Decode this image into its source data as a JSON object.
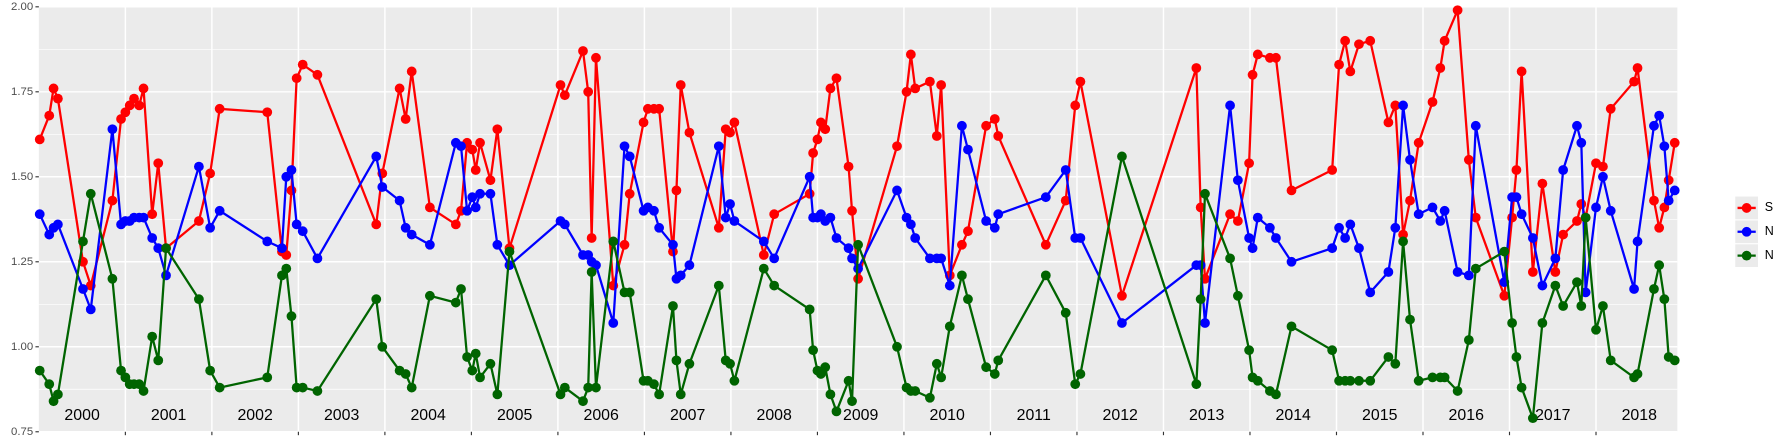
{
  "chart_data": {
    "type": "line",
    "x": [
      2000.01,
      2000.12,
      2000.17,
      2000.22,
      2000.51,
      2000.6,
      2000.85,
      2000.95,
      2001.0,
      2001.05,
      2001.1,
      2001.16,
      2001.21,
      2001.31,
      2001.38,
      2001.47,
      2001.85,
      2001.98,
      2002.09,
      2002.64,
      2002.81,
      2002.86,
      2002.92,
      2002.98,
      2003.05,
      2003.22,
      2003.9,
      2003.97,
      2004.17,
      2004.24,
      2004.31,
      2004.52,
      2004.82,
      2004.88,
      2004.95,
      2005.01,
      2005.05,
      2005.1,
      2005.22,
      2005.3,
      2005.44,
      2006.03,
      2006.08,
      2006.29,
      2006.35,
      2006.39,
      2006.44,
      2006.64,
      2006.77,
      2006.83,
      2006.99,
      2007.04,
      2007.11,
      2007.17,
      2007.33,
      2007.37,
      2007.42,
      2007.52,
      2007.86,
      2007.94,
      2007.99,
      2008.04,
      2008.38,
      2008.5,
      2008.91,
      2008.95,
      2009.0,
      2009.04,
      2009.09,
      2009.15,
      2009.22,
      2009.36,
      2009.4,
      2009.47,
      2009.92,
      2010.03,
      2010.08,
      2010.13,
      2010.3,
      2010.38,
      2010.43,
      2010.53,
      2010.67,
      2010.74,
      2010.95,
      2011.05,
      2011.09,
      2011.64,
      2011.87,
      2011.98,
      2012.04,
      2012.52,
      2013.38,
      2013.43,
      2013.48,
      2013.77,
      2013.86,
      2013.99,
      2014.03,
      2014.09,
      2014.23,
      2014.3,
      2014.48,
      2014.95,
      2015.03,
      2015.1,
      2015.16,
      2015.26,
      2015.39,
      2015.6,
      2015.68,
      2015.77,
      2015.85,
      2015.95,
      2016.11,
      2016.2,
      2016.25,
      2016.4,
      2016.53,
      2016.61,
      2016.94,
      2017.03,
      2017.08,
      2017.14,
      2017.27,
      2017.38,
      2017.53,
      2017.62,
      2017.78,
      2017.83,
      2017.88,
      2018.0,
      2018.08,
      2018.17,
      2018.44,
      2018.48,
      2018.67,
      2018.73,
      2018.79,
      2018.84,
      2018.91
    ],
    "series": [
      {
        "name": "SWIR",
        "color": "#ff0000",
        "values": [
          1.61,
          1.68,
          1.76,
          1.73,
          1.25,
          1.18,
          1.43,
          1.67,
          1.69,
          1.71,
          1.73,
          1.71,
          1.76,
          1.39,
          1.54,
          1.29,
          1.37,
          1.51,
          1.7,
          1.69,
          1.28,
          1.27,
          1.46,
          1.79,
          1.83,
          1.8,
          1.36,
          1.51,
          1.76,
          1.67,
          1.81,
          1.41,
          1.36,
          1.4,
          1.6,
          1.58,
          1.52,
          1.6,
          1.49,
          1.64,
          1.29,
          1.77,
          1.74,
          1.87,
          1.75,
          1.32,
          1.85,
          1.18,
          1.3,
          1.45,
          1.66,
          1.7,
          1.7,
          1.7,
          1.28,
          1.46,
          1.77,
          1.63,
          1.35,
          1.64,
          1.63,
          1.66,
          1.27,
          1.39,
          1.45,
          1.57,
          1.61,
          1.66,
          1.64,
          1.76,
          1.79,
          1.53,
          1.4,
          1.2,
          1.59,
          1.75,
          1.86,
          1.76,
          1.78,
          1.62,
          1.77,
          1.21,
          1.3,
          1.34,
          1.65,
          1.67,
          1.62,
          1.3,
          1.43,
          1.71,
          1.78,
          1.15,
          1.82,
          1.41,
          1.2,
          1.39,
          1.37,
          1.54,
          1.8,
          1.86,
          1.85,
          1.85,
          1.46,
          1.52,
          1.83,
          1.9,
          1.81,
          1.89,
          1.9,
          1.66,
          1.71,
          1.33,
          1.43,
          1.6,
          1.72,
          1.82,
          1.9,
          1.99,
          1.55,
          1.38,
          1.15,
          1.38,
          1.52,
          1.81,
          1.22,
          1.48,
          1.22,
          1.33,
          1.37,
          1.42,
          1.38,
          1.54,
          1.53,
          1.7,
          1.78,
          1.82,
          1.43,
          1.35,
          1.41,
          1.49,
          1.6
        ]
      },
      {
        "name": "NDVI",
        "color": "#0000ff",
        "values": [
          1.39,
          1.33,
          1.35,
          1.36,
          1.17,
          1.11,
          1.64,
          1.36,
          1.37,
          1.37,
          1.38,
          1.38,
          1.38,
          1.32,
          1.29,
          1.21,
          1.53,
          1.35,
          1.4,
          1.31,
          1.29,
          1.5,
          1.52,
          1.36,
          1.34,
          1.26,
          1.56,
          1.47,
          1.43,
          1.35,
          1.33,
          1.3,
          1.6,
          1.59,
          1.4,
          1.44,
          1.41,
          1.45,
          1.45,
          1.3,
          1.24,
          1.37,
          1.36,
          1.27,
          1.27,
          1.25,
          1.24,
          1.07,
          1.59,
          1.56,
          1.4,
          1.41,
          1.4,
          1.35,
          1.3,
          1.2,
          1.21,
          1.24,
          1.59,
          1.38,
          1.42,
          1.37,
          1.31,
          1.26,
          1.5,
          1.38,
          1.38,
          1.39,
          1.37,
          1.38,
          1.32,
          1.29,
          1.26,
          1.23,
          1.46,
          1.38,
          1.36,
          1.32,
          1.26,
          1.26,
          1.26,
          1.18,
          1.65,
          1.58,
          1.37,
          1.35,
          1.39,
          1.44,
          1.52,
          1.32,
          1.32,
          1.07,
          1.24,
          1.24,
          1.07,
          1.71,
          1.49,
          1.32,
          1.29,
          1.38,
          1.35,
          1.32,
          1.25,
          1.29,
          1.35,
          1.32,
          1.36,
          1.29,
          1.16,
          1.22,
          1.35,
          1.71,
          1.55,
          1.39,
          1.41,
          1.37,
          1.4,
          1.22,
          1.21,
          1.65,
          1.19,
          1.44,
          1.44,
          1.39,
          1.32,
          1.18,
          1.26,
          1.52,
          1.65,
          1.6,
          1.16,
          1.41,
          1.5,
          1.4,
          1.17,
          1.31,
          1.65,
          1.68,
          1.59,
          1.43,
          1.46
        ]
      },
      {
        "name": "NDWI",
        "color": "#006400",
        "values": [
          0.93,
          0.89,
          0.84,
          0.86,
          1.31,
          1.45,
          1.2,
          0.93,
          0.91,
          0.89,
          0.89,
          0.89,
          0.87,
          1.03,
          0.96,
          1.29,
          1.14,
          0.93,
          0.88,
          0.91,
          1.21,
          1.23,
          1.09,
          0.88,
          0.88,
          0.87,
          1.14,
          1.0,
          0.93,
          0.92,
          0.88,
          1.15,
          1.13,
          1.17,
          0.97,
          0.93,
          0.98,
          0.91,
          0.95,
          0.86,
          1.28,
          0.86,
          0.88,
          0.84,
          0.88,
          1.22,
          0.88,
          1.31,
          1.16,
          1.16,
          0.9,
          0.9,
          0.89,
          0.86,
          1.12,
          0.96,
          0.86,
          0.95,
          1.18,
          0.96,
          0.95,
          0.9,
          1.23,
          1.18,
          1.11,
          0.99,
          0.93,
          0.92,
          0.94,
          0.86,
          0.81,
          0.9,
          0.84,
          1.3,
          1.0,
          0.88,
          0.87,
          0.87,
          0.85,
          0.95,
          0.91,
          1.06,
          1.21,
          1.14,
          0.94,
          0.92,
          0.96,
          1.21,
          1.1,
          0.89,
          0.92,
          1.56,
          0.89,
          1.14,
          1.45,
          1.26,
          1.15,
          0.99,
          0.91,
          0.9,
          0.87,
          0.86,
          1.06,
          0.99,
          0.9,
          0.9,
          0.9,
          0.9,
          0.9,
          0.97,
          0.95,
          1.31,
          1.08,
          0.9,
          0.91,
          0.91,
          0.91,
          0.87,
          1.02,
          1.23,
          1.28,
          1.07,
          0.97,
          0.88,
          0.79,
          1.07,
          1.18,
          1.12,
          1.19,
          1.12,
          1.38,
          1.05,
          1.12,
          0.96,
          0.91,
          0.92,
          1.17,
          1.24,
          1.14,
          0.97,
          0.96
        ]
      }
    ],
    "xlim": [
      2000.0,
      2018.94
    ],
    "xticks": [
      2001,
      2002,
      2003,
      2004,
      2005,
      2006,
      2007,
      2008,
      2009,
      2010,
      2011,
      2012,
      2013,
      2014,
      2015,
      2016,
      2017,
      2018
    ],
    "year_labels": [
      "2000",
      "2001",
      "2002",
      "2003",
      "2004",
      "2005",
      "2006",
      "2007",
      "2008",
      "2009",
      "2010",
      "2011",
      "2012",
      "2013",
      "2014",
      "2015",
      "2016",
      "2017",
      "2018"
    ],
    "ylim": [
      0.75,
      2.0
    ],
    "yticks": [
      {
        "value": 0.75,
        "label": "0.75"
      },
      {
        "value": 1,
        "label": "1.00"
      },
      {
        "value": 1.25,
        "label": "1.25"
      },
      {
        "value": 1.5,
        "label": "1.50"
      },
      {
        "value": 1.75,
        "label": "1.75"
      },
      {
        "value": 2,
        "label": "2.00"
      }
    ],
    "yminor": [
      0.875,
      1.125,
      1.375,
      1.625,
      1.875
    ],
    "grid": true,
    "legend": "right"
  }
}
